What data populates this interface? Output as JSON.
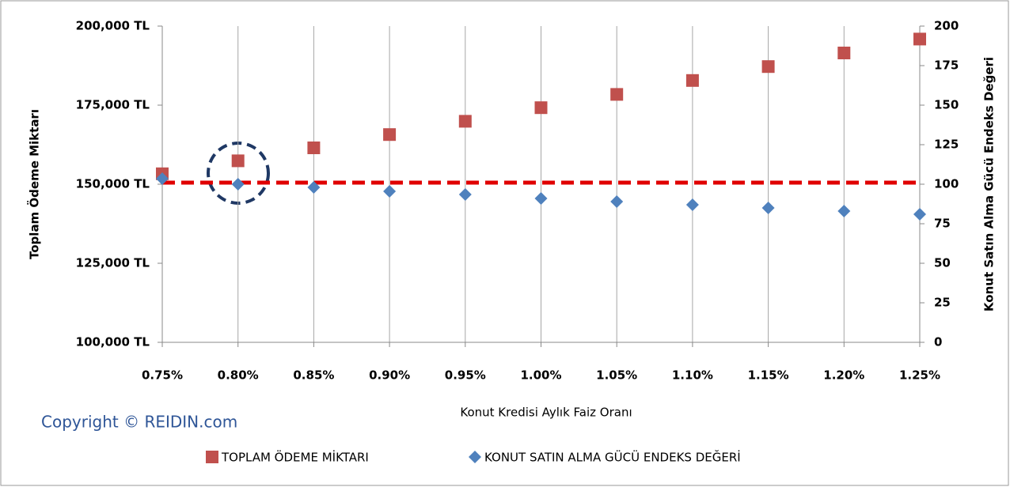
{
  "chart_data": {
    "type": "scatter",
    "x_label": "Konut Kredisi Aylık Faiz Oranı",
    "y_label": "Toplam Ödeme Miktarı",
    "y2_label": "Konut Satın Alma Gücü Endeks Değeri",
    "copyright": "Copyright © REIDIN.com",
    "x": [
      0.75,
      0.8,
      0.85,
      0.9,
      0.95,
      1.0,
      1.05,
      1.1,
      1.15,
      1.2,
      1.25
    ],
    "xlim": [
      0.75,
      1.25
    ],
    "xticks": [
      {
        "value": 0.75,
        "label": "0.75%"
      },
      {
        "value": 0.8,
        "label": "0.80%"
      },
      {
        "value": 0.85,
        "label": "0.85%"
      },
      {
        "value": 0.9,
        "label": "0.90%"
      },
      {
        "value": 0.95,
        "label": "0.95%"
      },
      {
        "value": 1.0,
        "label": "1.00%"
      },
      {
        "value": 1.05,
        "label": "1.05%"
      },
      {
        "value": 1.1,
        "label": "1.10%"
      },
      {
        "value": 1.15,
        "label": "1.15%"
      },
      {
        "value": 1.2,
        "label": "1.20%"
      },
      {
        "value": 1.25,
        "label": "1.25%"
      }
    ],
    "ylim": [
      100000,
      200000
    ],
    "yticks": [
      {
        "value": 100000,
        "label": "100,000 TL"
      },
      {
        "value": 125000,
        "label": "125,000 TL"
      },
      {
        "value": 150000,
        "label": "150,000 TL"
      },
      {
        "value": 175000,
        "label": "175,000 TL"
      },
      {
        "value": 200000,
        "label": "200,000 TL"
      }
    ],
    "y2lim": [
      0,
      200
    ],
    "y2ticks": [
      0,
      25,
      50,
      75,
      100,
      125,
      150,
      175,
      200
    ],
    "grid": true,
    "legend": "bottom",
    "series": [
      {
        "name": "TOPLAM ÖDEME MİKTARI",
        "color": "#c0504d",
        "marker": "square",
        "values": [
          153300,
          157400,
          161500,
          165700,
          169900,
          174200,
          178400,
          182800,
          187200,
          191500,
          195900
        ]
      },
      {
        "name": "KONUT SATIN ALMA GÜCÜ ENDEKS DEĞERİ",
        "color": "#4f81bd",
        "marker": "diamond",
        "axis": "y2",
        "values": [
          103.5,
          100,
          98,
          95.5,
          93.5,
          91,
          89,
          87,
          85,
          83,
          81
        ]
      }
    ],
    "reference_lines": [
      {
        "axis": "y2",
        "value": 101,
        "color": "#e00000"
      }
    ]
  }
}
